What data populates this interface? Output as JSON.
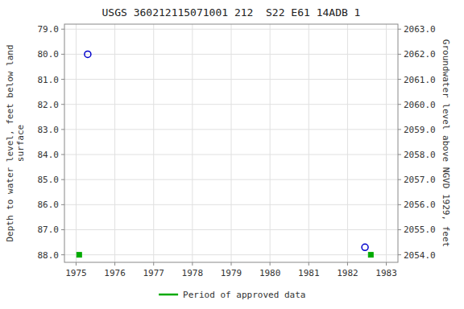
{
  "chart_data": {
    "type": "scatter",
    "title": "USGS 360212115071001 212  S22 E61 14ADB 1",
    "xlabel": null,
    "ylabel": "Depth to water level, feet below land\nsurface",
    "y2label": "Groundwater level above NGVD 1929, feet",
    "series": [
      {
        "color": "#0000cc",
        "marker": "circle",
        "x": [
          1975.3,
          1982.45
        ],
        "values": [
          80.0,
          87.7
        ]
      },
      {
        "name": "Period of approved data",
        "color": "#00aa00",
        "marker": "square",
        "x": [
          1975.08,
          1982.6
        ],
        "values": [
          88.0,
          88.0
        ]
      }
    ],
    "xlim": [
      1974.7,
      1983.3
    ],
    "xticks": [
      1975,
      1976,
      1977,
      1978,
      1979,
      1980,
      1981,
      1982,
      1983
    ],
    "ylim": [
      88.3,
      78.8
    ],
    "yticks": [
      {
        "value": 79,
        "label": "79.0"
      },
      {
        "value": 80,
        "label": "80.0"
      },
      {
        "value": 81,
        "label": "81.0"
      },
      {
        "value": 82,
        "label": "82.0"
      },
      {
        "value": 83,
        "label": "83.0"
      },
      {
        "value": 84,
        "label": "84.0"
      },
      {
        "value": 85,
        "label": "85.0"
      },
      {
        "value": 86,
        "label": "86.0"
      },
      {
        "value": 87,
        "label": "87.0"
      },
      {
        "value": 88,
        "label": "88.0"
      }
    ],
    "y2lim": [
      2053.7,
      2063.2
    ],
    "y2ticks": [
      {
        "value": 2063,
        "label": "2063.0"
      },
      {
        "value": 2062,
        "label": "2062.0"
      },
      {
        "value": 2061,
        "label": "2061.0"
      },
      {
        "value": 2060,
        "label": "2060.0"
      },
      {
        "value": 2059,
        "label": "2059.0"
      },
      {
        "value": 2058,
        "label": "2058.0"
      },
      {
        "value": 2057,
        "label": "2057.0"
      },
      {
        "value": 2056,
        "label": "2056.0"
      },
      {
        "value": 2055,
        "label": "2055.0"
      },
      {
        "value": 2054,
        "label": "2054.0"
      }
    ],
    "grid": true,
    "legend": "bottom"
  }
}
